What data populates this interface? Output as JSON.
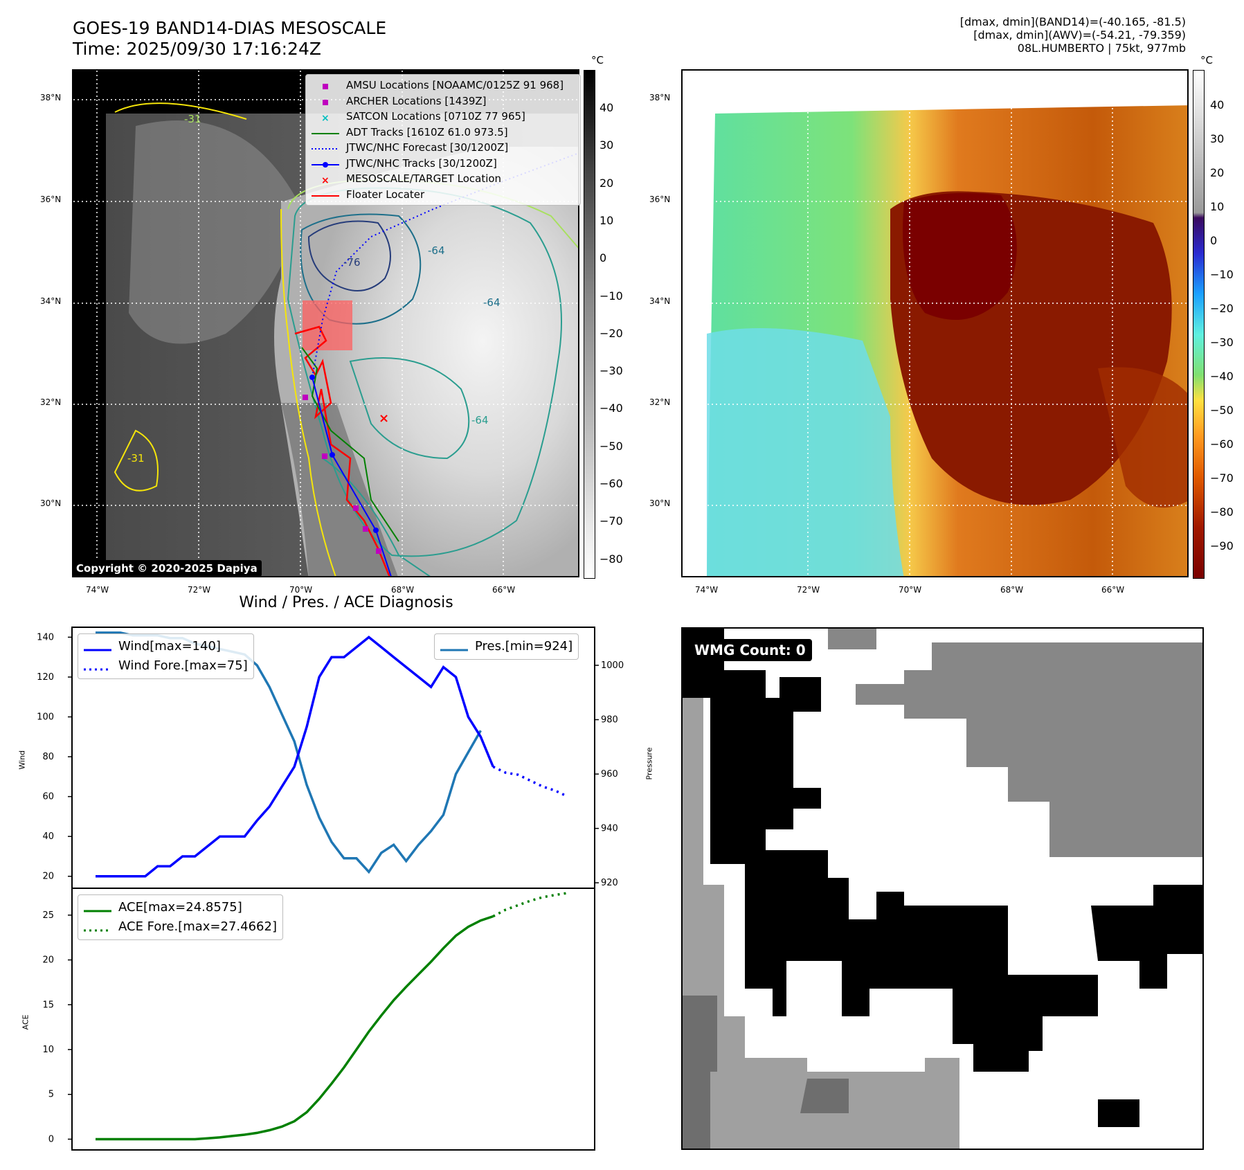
{
  "header": {
    "title_line1": "GOES-19 BAND14-DIAS MESOSCALE",
    "title_line2": "Time: 2025/09/30 17:16:24Z",
    "info_line1": "[dmax, dmin](BAND14)=(-40.165, -81.5)",
    "info_line2": "[dmax, dmin](AWV)=(-54.21, -79.359)",
    "info_line3": "08L.HUMBERTO | 75kt, 977mb"
  },
  "map": {
    "lon_labels": [
      "74°W",
      "72°W",
      "70°W",
      "68°W",
      "66°W"
    ],
    "lat_labels": [
      "38°N",
      "36°N",
      "34°N",
      "32°N",
      "30°N"
    ],
    "contour_labels": [
      "-76",
      "-64",
      "-64",
      "-64",
      "-31",
      "-31"
    ],
    "copyright": "Copyright © 2020-2025 Dapiya",
    "legend": [
      {
        "label": "AMSU Locations [NOAAMC/0125Z 91 968]",
        "color": "#bf00bf"
      },
      {
        "label": "ARCHER Locations [1439Z]",
        "color": "#bf00bf"
      },
      {
        "label": "SATCON Locations [0710Z 77 965]",
        "color": "#00bfbf"
      },
      {
        "label": "ADT Tracks [1610Z 61.0 973.5]",
        "color": "#008000"
      },
      {
        "label": "JTWC/NHC Forecast [30/1200Z]",
        "color": "#0000ff"
      },
      {
        "label": "JTWC/NHC Tracks [30/1200Z]",
        "color": "#0000ff"
      },
      {
        "label": "MESOSCALE/TARGET Location",
        "color": "#ff0000"
      },
      {
        "label": "Floater Locater",
        "color": "#ff0000"
      }
    ],
    "colorbar_left": {
      "unit": "°C",
      "ticks": [
        "40",
        "30",
        "20",
        "10",
        "0",
        "−10",
        "−20",
        "−30",
        "−40",
        "−50",
        "−60",
        "−70",
        "−80"
      ]
    },
    "colorbar_right": {
      "unit": "°C",
      "ticks": [
        "40",
        "30",
        "20",
        "10",
        "0",
        "−10",
        "−20",
        "−30",
        "−40",
        "−50",
        "−60",
        "−70",
        "−80",
        "−90"
      ]
    }
  },
  "chart_data": [
    {
      "type": "line",
      "title": "Wind / Pres. / ACE Diagnosis",
      "ylabel": "Wind",
      "ylim": [
        14,
        145
      ],
      "yticks": [
        20,
        40,
        60,
        80,
        100,
        120,
        140
      ],
      "series": [
        {
          "name": "Wind[max=140]",
          "color": "#0000ff",
          "style": "solid",
          "values": [
            20,
            20,
            20,
            20,
            20,
            25,
            25,
            30,
            30,
            35,
            40,
            40,
            40,
            48,
            55,
            65,
            75,
            95,
            120,
            130,
            130,
            135,
            140,
            135,
            130,
            125,
            120,
            115,
            125,
            120,
            100,
            90,
            75
          ]
        },
        {
          "name": "Wind Fore.[max=75]",
          "color": "#0000ff",
          "style": "dotted",
          "values": [
            75,
            72,
            71,
            68,
            65,
            63,
            60
          ]
        }
      ]
    },
    {
      "type": "line",
      "ylabel": "Pressure",
      "ylim": [
        918,
        1014
      ],
      "yticks": [
        920,
        940,
        960,
        980,
        1000
      ],
      "series": [
        {
          "name": "Pres.[min=924]",
          "color": "#1f77b4",
          "style": "solid",
          "values": [
            1012,
            1012,
            1012,
            1011,
            1011,
            1011,
            1010,
            1010,
            1008,
            1007,
            1006,
            1005,
            1004,
            1000,
            992,
            982,
            972,
            956,
            944,
            935,
            929,
            929,
            924,
            931,
            934,
            928,
            934,
            939,
            945,
            960,
            968,
            976
          ]
        }
      ]
    },
    {
      "type": "line",
      "ylabel": "ACE",
      "ylim": [
        -1.2,
        28
      ],
      "yticks": [
        0,
        5,
        10,
        15,
        20,
        25
      ],
      "series": [
        {
          "name": "ACE[max=24.8575]",
          "color": "#008000",
          "style": "solid",
          "values": [
            0,
            0,
            0,
            0,
            0,
            0,
            0,
            0,
            0,
            0.1,
            0.2,
            0.35,
            0.5,
            0.7,
            1.0,
            1.4,
            2.0,
            3.0,
            4.5,
            6.2,
            8.0,
            10.0,
            12.0,
            13.8,
            15.5,
            17.0,
            18.4,
            19.8,
            21.3,
            22.7,
            23.7,
            24.4,
            24.86
          ]
        },
        {
          "name": "ACE Fore.[max=27.4662]",
          "color": "#008000",
          "style": "dotted",
          "values": [
            24.86,
            25.6,
            26.1,
            26.6,
            27.0,
            27.25,
            27.47
          ]
        }
      ]
    }
  ],
  "wmg": {
    "label": "WMG Count: 0"
  }
}
